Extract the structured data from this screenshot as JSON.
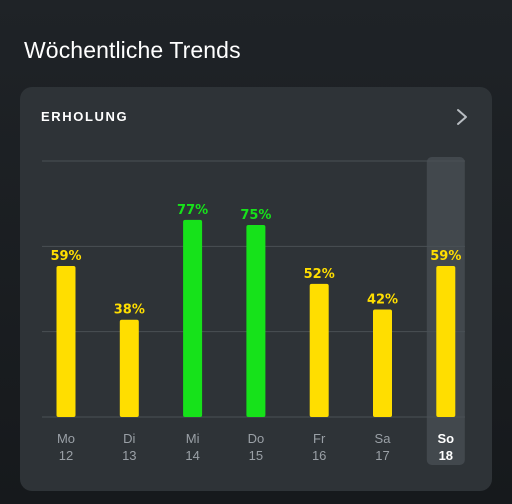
{
  "page": {
    "title": "Wöchentliche Trends"
  },
  "card": {
    "title": "ERHOLUNG",
    "chevron_icon": "chevron-right-icon"
  },
  "colors": {
    "yellow": "#ffde00",
    "green": "#16e21a",
    "label_default": "#9aa0a6",
    "label_selected": "#ffffff",
    "grid": "#4a5055",
    "highlight": "#42484d"
  },
  "chart_data": {
    "type": "bar",
    "categories": [
      "Mo 12",
      "Di 13",
      "Mi 14",
      "Do 15",
      "Fr 16",
      "Sa 17",
      "So 18"
    ],
    "days": [
      {
        "day": "Mo",
        "date": "12",
        "value": 59,
        "label": "59%",
        "color": "yellow",
        "selected": false
      },
      {
        "day": "Di",
        "date": "13",
        "value": 38,
        "label": "38%",
        "color": "yellow",
        "selected": false
      },
      {
        "day": "Mi",
        "date": "14",
        "value": 77,
        "label": "77%",
        "color": "green",
        "selected": false
      },
      {
        "day": "Do",
        "date": "15",
        "value": 75,
        "label": "75%",
        "color": "green",
        "selected": false
      },
      {
        "day": "Fr",
        "date": "16",
        "value": 52,
        "label": "52%",
        "color": "yellow",
        "selected": false
      },
      {
        "day": "Sa",
        "date": "17",
        "value": 42,
        "label": "42%",
        "color": "yellow",
        "selected": false
      },
      {
        "day": "So",
        "date": "18",
        "value": 59,
        "label": "59%",
        "color": "yellow",
        "selected": true
      }
    ],
    "values": [
      59,
      38,
      77,
      75,
      52,
      42,
      59
    ],
    "ylim": [
      0,
      100
    ],
    "grid": true
  }
}
